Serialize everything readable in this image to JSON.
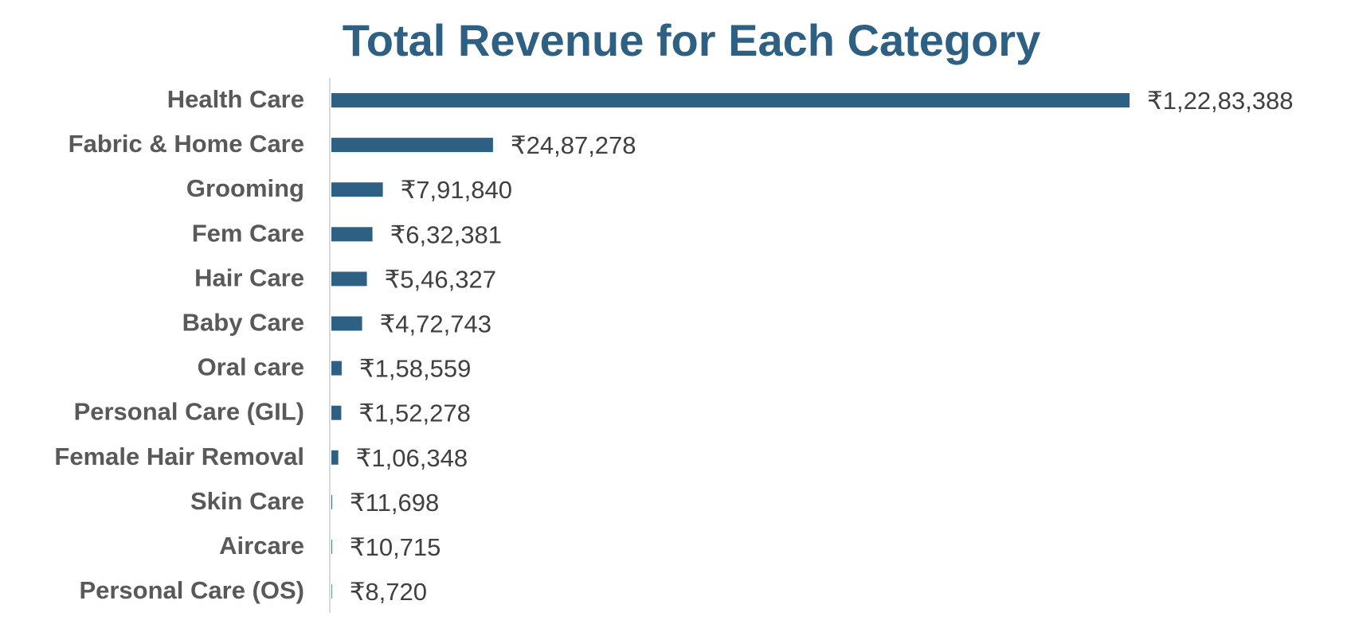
{
  "colors": {
    "bar": "#2E6083",
    "title": "#2E6083",
    "category_label": "#595959",
    "value_label": "#404040",
    "axis_line": "#D9D9D9",
    "background": "#FFFFFF"
  },
  "chart_data": {
    "type": "bar",
    "orientation": "horizontal",
    "title": "Total Revenue for Each Category",
    "xlabel": "",
    "ylabel": "",
    "legend": "none",
    "grid": false,
    "categories": [
      "Health Care",
      "Fabric & Home Care",
      "Grooming",
      "Fem Care",
      "Hair Care",
      "Baby Care",
      "Oral care",
      "Personal Care (GIL)",
      "Female Hair Removal",
      "Skin Care",
      "Aircare",
      "Personal Care (OS)"
    ],
    "values": [
      12283388,
      2487278,
      791840,
      632381,
      546327,
      472743,
      158559,
      152278,
      106348,
      11698,
      10715,
      8720
    ],
    "value_labels": [
      "₹1,22,83,388",
      "₹24,87,278",
      "₹7,91,840",
      "₹6,32,381",
      "₹5,46,327",
      "₹4,72,743",
      "₹1,58,559",
      "₹1,52,278",
      "₹1,06,348",
      "₹11,698",
      "₹10,715",
      "₹8,720"
    ],
    "xlim": [
      0,
      12283388
    ]
  }
}
